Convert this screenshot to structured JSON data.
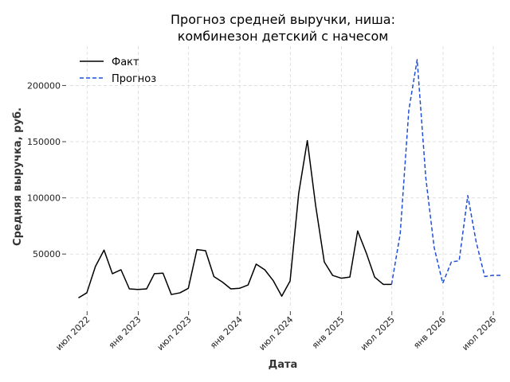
{
  "chart_data": {
    "type": "line",
    "title_line1": "Прогноз средней выручки, ниша:",
    "title_line2": "комбинезон детский с начесом",
    "xlabel": "Дата",
    "ylabel": "Средняя выручка, руб.",
    "ylim": [
      2000,
      235000
    ],
    "xlim": [
      "2022-05-01",
      "2026-07-15"
    ],
    "grid": true,
    "legend_position": "top-left",
    "yticks": [
      50000,
      100000,
      150000,
      200000
    ],
    "ytick_labels": [
      "50000",
      "100000",
      "150000",
      "200000"
    ],
    "xticks": [
      "2022-07-01",
      "2023-01-01",
      "2023-07-01",
      "2024-01-01",
      "2024-07-01",
      "2025-01-01",
      "2025-07-01",
      "2026-01-01",
      "2026-07-01"
    ],
    "xtick_labels": [
      "июл 2022",
      "янв 2023",
      "июл 2023",
      "янв 2024",
      "июл 2024",
      "янв 2025",
      "июл 2025",
      "янв 2026",
      "июл 2026"
    ],
    "series": [
      {
        "name": "Факт",
        "color": "#000000",
        "style": "solid",
        "x": [
          "2022-05-31",
          "2022-06-30",
          "2022-07-31",
          "2022-08-31",
          "2022-09-30",
          "2022-10-31",
          "2022-11-30",
          "2022-12-31",
          "2023-01-31",
          "2023-02-28",
          "2023-03-31",
          "2023-04-30",
          "2023-05-31",
          "2023-06-30",
          "2023-07-31",
          "2023-08-31",
          "2023-09-30",
          "2023-10-31",
          "2023-11-30",
          "2023-12-31",
          "2024-01-31",
          "2024-02-29",
          "2024-03-31",
          "2024-04-30",
          "2024-05-31",
          "2024-06-30",
          "2024-07-31",
          "2024-08-31",
          "2024-09-30",
          "2024-10-31",
          "2024-11-30",
          "2024-12-31",
          "2025-01-31",
          "2025-02-28",
          "2025-03-31",
          "2025-04-30",
          "2025-05-31",
          "2025-06-30"
        ],
        "y": [
          11000,
          15500,
          39000,
          53500,
          32500,
          36000,
          19000,
          18500,
          19000,
          32500,
          33000,
          14000,
          15500,
          19500,
          54000,
          53000,
          30000,
          25000,
          19000,
          19500,
          22500,
          41000,
          36000,
          26500,
          12500,
          26000,
          104000,
          151000,
          93000,
          43000,
          31000,
          28500,
          29500,
          70500,
          51000,
          29500,
          23000,
          23000
        ]
      },
      {
        "name": "Прогноз",
        "color": "#1f4fd6",
        "style": "dashed",
        "x": [
          "2025-06-30",
          "2025-07-31",
          "2025-08-31",
          "2025-09-30",
          "2025-10-31",
          "2025-11-30",
          "2025-12-31",
          "2026-01-31",
          "2026-02-28",
          "2026-03-31",
          "2026-04-30",
          "2026-05-31",
          "2026-06-30",
          "2026-07-31"
        ],
        "y": [
          23000,
          68000,
          178000,
          223000,
          118000,
          56000,
          24000,
          43000,
          44000,
          102000,
          61000,
          30000,
          31000,
          31000
        ]
      }
    ]
  }
}
